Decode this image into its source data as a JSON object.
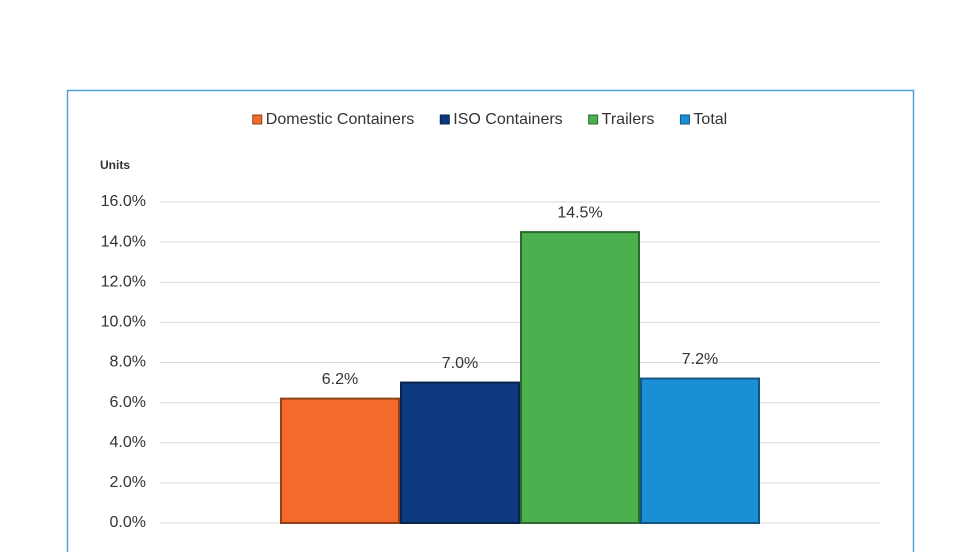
{
  "chart_data": {
    "type": "bar",
    "y_label": "Units",
    "categories": [
      null
    ],
    "series": [
      {
        "name": "Domestic Containers",
        "color": "#f26b2a",
        "values": [
          6.2
        ],
        "value_labels": [
          "6.2%"
        ]
      },
      {
        "name": "ISO Containers",
        "color": "#0d3a7e",
        "values": [
          7.0
        ],
        "value_labels": [
          "7.0%"
        ]
      },
      {
        "name": "Trailers",
        "color": "#4db04f",
        "values": [
          14.5
        ],
        "value_labels": [
          "14.5%"
        ]
      },
      {
        "name": "Total",
        "color": "#1b8fd6",
        "values": [
          7.2
        ],
        "value_labels": [
          "7.2%"
        ]
      }
    ],
    "ylim": [
      0,
      16
    ],
    "yticks": [
      {
        "value": 0,
        "label": "0.0%"
      },
      {
        "value": 2,
        "label": "2.0%"
      },
      {
        "value": 4,
        "label": "4.0%"
      },
      {
        "value": 6,
        "label": "6.0%"
      },
      {
        "value": 8,
        "label": "8.0%"
      },
      {
        "value": 10,
        "label": "10.0%"
      },
      {
        "value": 12,
        "label": "12.0%"
      },
      {
        "value": 14,
        "label": "14.0%"
      },
      {
        "value": 16,
        "label": "16.0%"
      }
    ],
    "grid": true,
    "legend": "top"
  }
}
